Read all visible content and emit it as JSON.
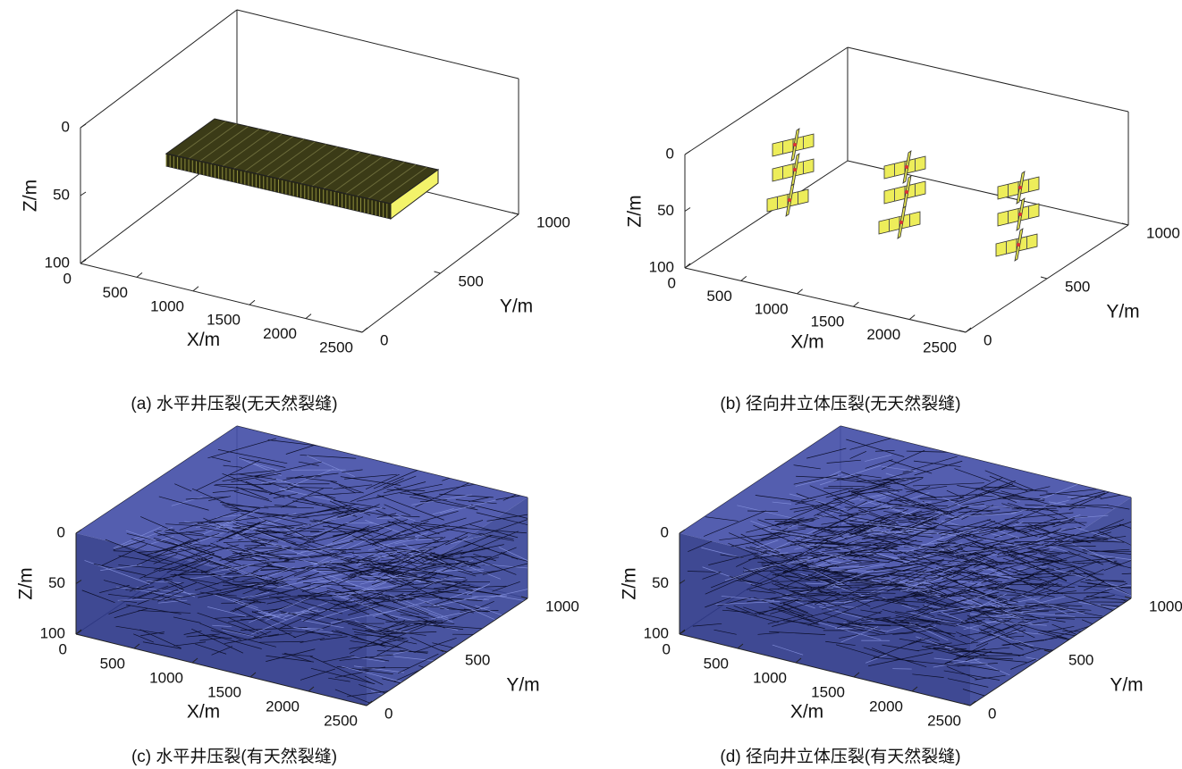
{
  "panels": [
    {
      "caption": "(a) 水平井压裂(无天然裂缝)",
      "xlabel": "X/m",
      "ylabel": "Y/m",
      "zlabel": "Z/m",
      "xticks": [
        0,
        500,
        1000,
        1500,
        2000,
        2500
      ],
      "yticks": [
        0,
        500,
        1000
      ],
      "zticks": [
        0,
        50,
        100
      ]
    },
    {
      "caption": "(b) 径向井立体压裂(无天然裂缝)",
      "xlabel": "X/m",
      "ylabel": "Y/m",
      "zlabel": "Z/m",
      "xticks": [
        0,
        500,
        1000,
        1500,
        2000,
        2500
      ],
      "yticks": [
        0,
        500,
        1000
      ],
      "zticks": [
        0,
        50,
        100
      ]
    },
    {
      "caption": "(c) 水平井压裂(有天然裂缝)",
      "xlabel": "X/m",
      "ylabel": "Y/m",
      "zlabel": "Z/m",
      "xticks": [
        0,
        500,
        1000,
        1500,
        2000,
        2500
      ],
      "yticks": [
        0,
        500,
        1000
      ],
      "zticks": [
        0,
        50,
        100
      ]
    },
    {
      "caption": "(d) 径向井立体压裂(有天然裂缝)",
      "xlabel": "X/m",
      "ylabel": "Y/m",
      "zlabel": "Z/m",
      "xticks": [
        0,
        500,
        1000,
        1500,
        2000,
        2500
      ],
      "yticks": [
        0,
        500,
        1000
      ],
      "zticks": [
        0,
        50,
        100
      ]
    }
  ]
}
